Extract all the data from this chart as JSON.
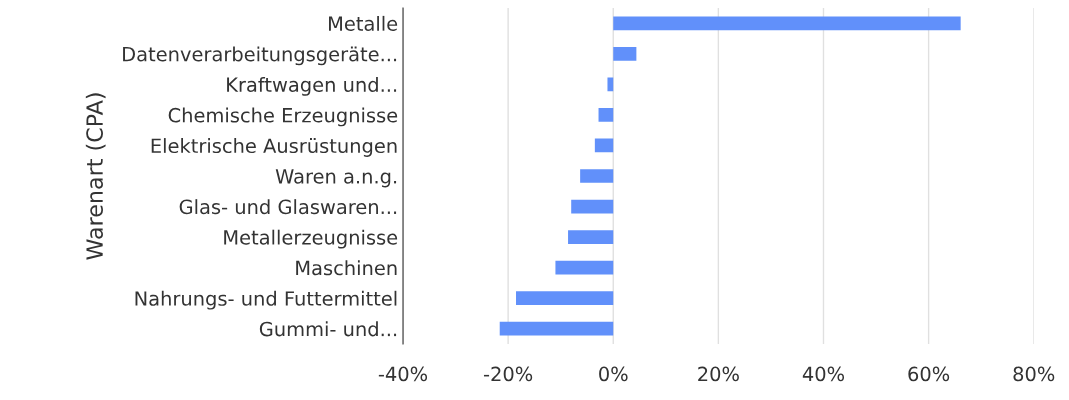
{
  "chart_data": {
    "type": "bar",
    "orientation": "horizontal",
    "ylabel": "Warenart (CPA)",
    "categories": [
      "Metalle",
      "Datenverarbeitungsgeräte...",
      "Kraftwagen und...",
      "Chemische Erzeugnisse",
      "Elektrische Ausrüstungen",
      "Waren a.n.g.",
      "Glas- und Glaswaren...",
      "Metallerzeugnisse",
      "Maschinen",
      "Nahrungs- und Futtermittel",
      "Gummi- und..."
    ],
    "series": [
      {
        "color": "#6190fa",
        "values": [
          66.1,
          4.4,
          -1.1,
          -2.8,
          -3.5,
          -6.3,
          -8.0,
          -8.6,
          -11.0,
          -18.5,
          -21.6
        ]
      }
    ],
    "xlim": [
      -40,
      80
    ],
    "xticks": [
      {
        "value": -40,
        "label": "-40%"
      },
      {
        "value": -20,
        "label": "-20%"
      },
      {
        "value": 0,
        "label": "0%"
      },
      {
        "value": 20,
        "label": "20%"
      },
      {
        "value": 40,
        "label": "40%"
      },
      {
        "value": 60,
        "label": "60%"
      },
      {
        "value": 80,
        "label": "80%"
      }
    ],
    "grid": "x"
  }
}
